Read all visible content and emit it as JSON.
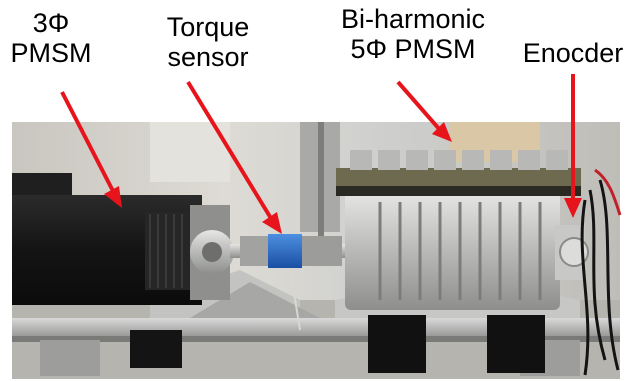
{
  "labels": {
    "motor_3phase": {
      "line1": "3Φ",
      "line2": "PMSM"
    },
    "torque_sensor": {
      "line1": "Torque",
      "line2": "sensor"
    },
    "bi_harmonic_motor": {
      "line1": "Bi-harmonic",
      "line2": "5Φ PMSM"
    },
    "encoder": {
      "line1": "Enocder"
    }
  },
  "colors": {
    "arrow": "#e8141b",
    "label_text": "#000000"
  }
}
